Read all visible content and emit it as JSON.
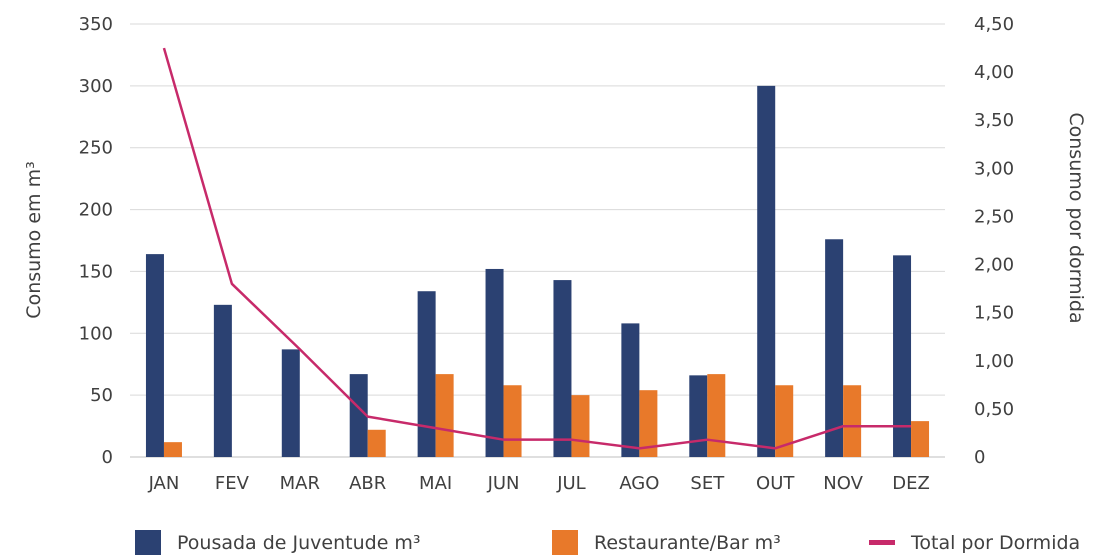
{
  "chart_data": {
    "type": "bar",
    "categories": [
      "JAN",
      "FEV",
      "MAR",
      "ABR",
      "MAI",
      "JUN",
      "JUL",
      "AGO",
      "SET",
      "OUT",
      "NOV",
      "DEZ"
    ],
    "series": [
      {
        "name": "Pousada de Juventude m³",
        "type": "bar",
        "axis": "left",
        "color": "#2b4172",
        "values": [
          164,
          123,
          87,
          67,
          134,
          152,
          143,
          108,
          66,
          300,
          176,
          163
        ]
      },
      {
        "name": "Restaurante/Bar m³",
        "type": "bar",
        "axis": "left",
        "color": "#e8792a",
        "values": [
          12,
          0,
          0,
          22,
          67,
          58,
          50,
          54,
          67,
          58,
          58,
          29
        ]
      },
      {
        "name": "Total por Dormida",
        "type": "line",
        "axis": "right",
        "color": "#c72a6a",
        "values": [
          4.25,
          1.8,
          1.12,
          0.42,
          0.3,
          0.18,
          0.18,
          0.09,
          0.18,
          0.09,
          0.32,
          0.32
        ]
      }
    ],
    "ylabel": "Consumo em m³",
    "y2label": "Consumo por dormida",
    "ylim": [
      0,
      350
    ],
    "y2lim": [
      0,
      4.5
    ],
    "yticks": [
      "0",
      "50",
      "100",
      "150",
      "200",
      "250",
      "300",
      "350"
    ],
    "y2ticks": [
      "0",
      "0,50",
      "1,00",
      "1,50",
      "2,00",
      "2,50",
      "3,00",
      "3,50",
      "4,00",
      "4,50"
    ],
    "grid": true,
    "legend": "bottom"
  }
}
